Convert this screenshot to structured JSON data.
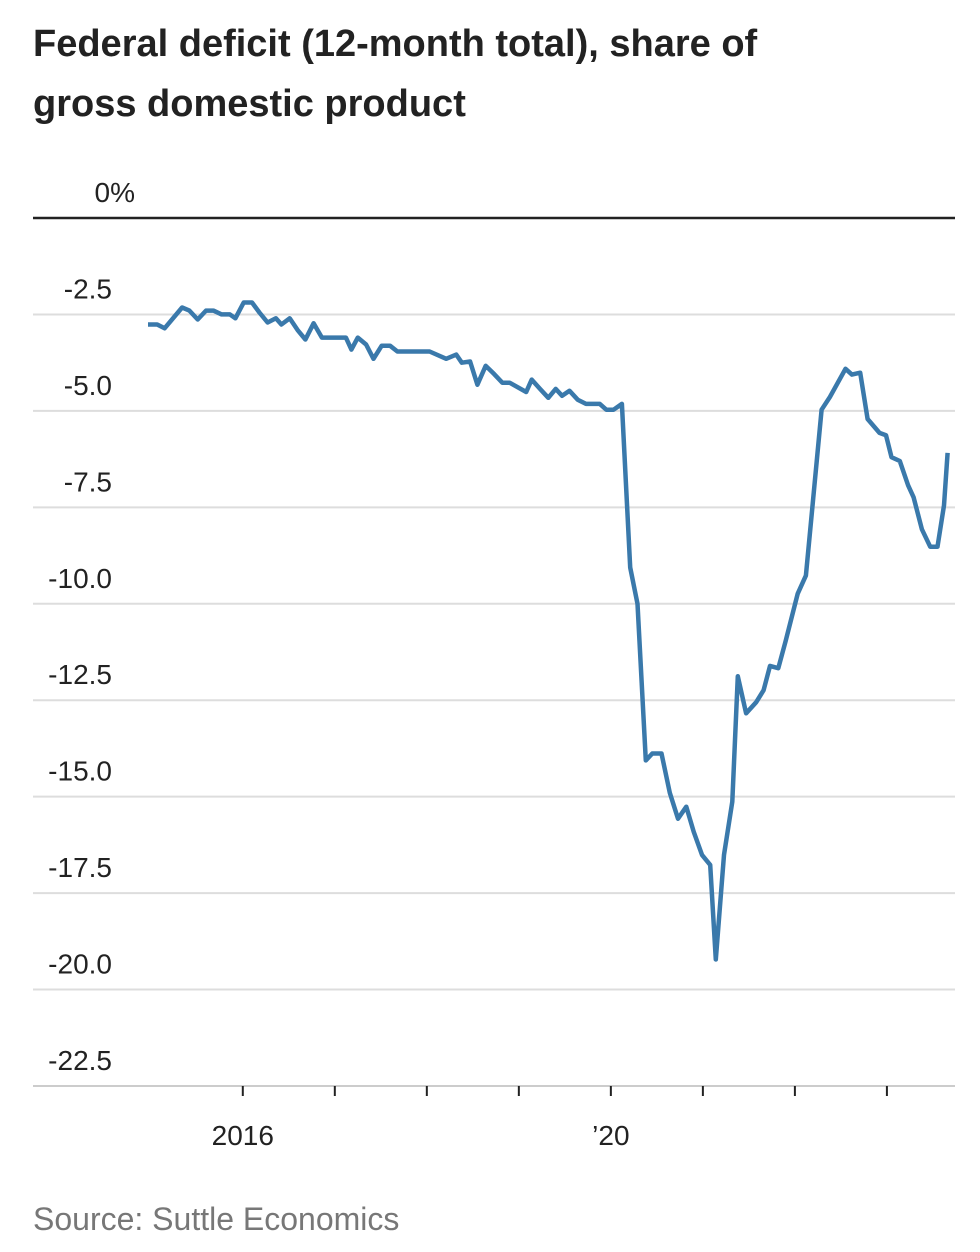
{
  "chart_data": {
    "type": "line",
    "title": "Federal deficit (12-month total), share of gross domestic product",
    "source": "Source: Suttle Economics",
    "x": [
      2014.97,
      2015.07,
      2015.15,
      2015.34,
      2015.42,
      2015.51,
      2015.6,
      2015.68,
      2015.77,
      2015.86,
      2015.92,
      2016.01,
      2016.1,
      2016.18,
      2016.27,
      2016.36,
      2016.42,
      2016.51,
      2016.6,
      2016.68,
      2016.77,
      2016.86,
      2017.12,
      2017.18,
      2017.25,
      2017.34,
      2017.42,
      2017.51,
      2017.6,
      2017.68,
      2018.03,
      2018.21,
      2018.32,
      2018.38,
      2018.47,
      2018.55,
      2018.64,
      2018.73,
      2018.82,
      2018.9,
      2019.08,
      2019.14,
      2019.23,
      2019.32,
      2019.4,
      2019.47,
      2019.55,
      2019.64,
      2019.73,
      2019.88,
      2019.95,
      2020.03,
      2020.12,
      2020.21,
      2020.29,
      2020.38,
      2020.45,
      2020.55,
      2020.64,
      2020.73,
      2020.82,
      2020.9,
      2020.99,
      2021.08,
      2021.14,
      2021.23,
      2021.32,
      2021.38,
      2021.47,
      2021.58,
      2021.66,
      2021.73,
      2021.82,
      2021.9,
      2022.03,
      2022.12,
      2022.29,
      2022.38,
      2022.55,
      2022.62,
      2022.71,
      2022.79,
      2022.92,
      2022.99,
      2023.05,
      2023.14,
      2023.23,
      2023.29,
      2023.38,
      2023.47,
      2023.55,
      2023.62,
      2023.66
    ],
    "series": [
      {
        "name": "Federal deficit",
        "color": "#3a79ab",
        "values": [
          -2.76,
          -2.76,
          -2.86,
          -2.32,
          -2.4,
          -2.63,
          -2.4,
          -2.4,
          -2.5,
          -2.5,
          -2.6,
          -2.19,
          -2.19,
          -2.45,
          -2.71,
          -2.6,
          -2.76,
          -2.6,
          -2.92,
          -3.15,
          -2.73,
          -3.1,
          -3.1,
          -3.41,
          -3.1,
          -3.28,
          -3.65,
          -3.31,
          -3.31,
          -3.46,
          -3.46,
          -3.65,
          -3.54,
          -3.75,
          -3.72,
          -4.32,
          -3.83,
          -4.04,
          -4.27,
          -4.27,
          -4.51,
          -4.19,
          -4.43,
          -4.66,
          -4.43,
          -4.61,
          -4.48,
          -4.71,
          -4.82,
          -4.82,
          -4.97,
          -4.97,
          -4.82,
          -9.06,
          -10.0,
          -14.06,
          -13.88,
          -13.88,
          -14.9,
          -15.57,
          -15.26,
          -15.91,
          -16.51,
          -16.77,
          -19.22,
          -16.51,
          -15.13,
          -11.88,
          -12.84,
          -12.55,
          -12.24,
          -11.61,
          -11.67,
          -10.96,
          -9.74,
          -9.27,
          -4.97,
          -4.64,
          -3.91,
          -4.06,
          -4.01,
          -5.21,
          -5.57,
          -5.63,
          -6.2,
          -6.3,
          -6.93,
          -7.24,
          -8.07,
          -8.52,
          -8.52,
          -7.45,
          -6.09
        ]
      }
    ],
    "xlim": [
      2013.72,
      2023.74
    ],
    "xticks": [
      2016,
      {
        "value": 2020,
        "label": "’20"
      }
    ],
    "xminorticks": [
      2017,
      2018,
      2019,
      2021,
      2022,
      2023
    ],
    "ylim": [
      -22.5,
      0
    ],
    "yticks": [
      {
        "value": 0,
        "label": "0%"
      },
      -2.5,
      {
        "value": -5,
        "label": "-5.0"
      },
      -7.5,
      {
        "value": -10,
        "label": "-10.0"
      },
      -12.5,
      {
        "value": -15,
        "label": "-15.0"
      },
      -17.5,
      {
        "value": -20,
        "label": "-20.0"
      },
      -22.5
    ],
    "grid": true
  }
}
